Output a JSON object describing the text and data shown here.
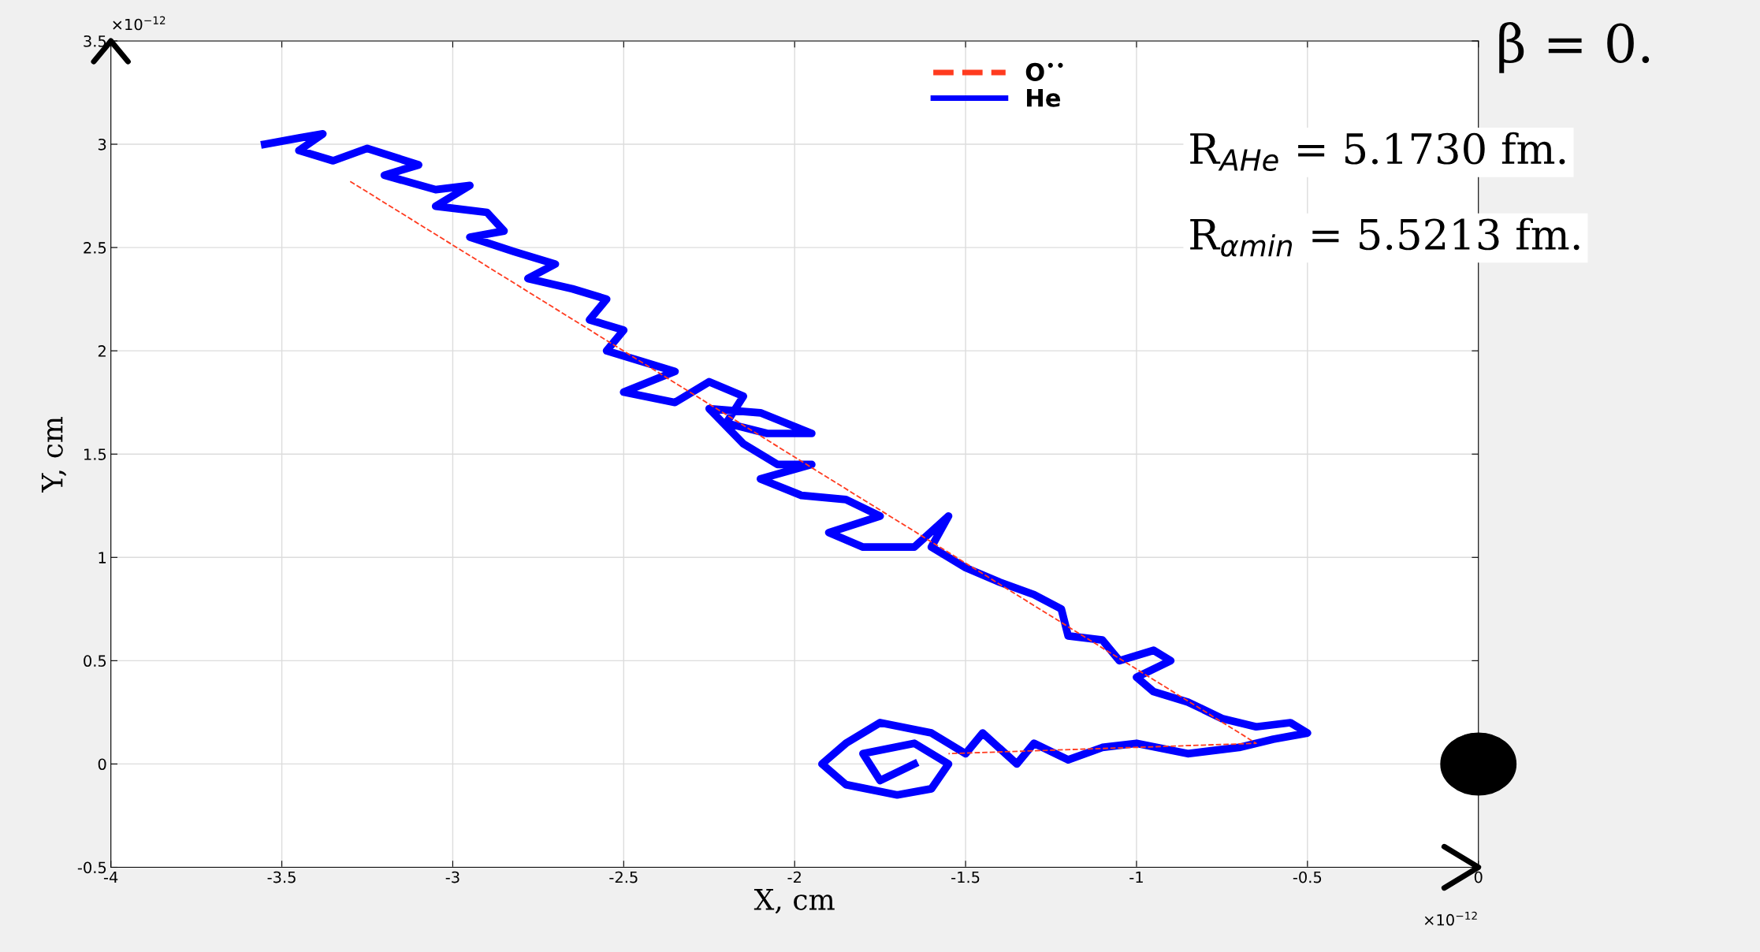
{
  "chart_data": {
    "type": "line",
    "xlabel": "X, cm",
    "ylabel": "Y, cm",
    "xlim": [
      -4,
      0
    ],
    "ylim": [
      -0.5,
      3.5
    ],
    "xticks": [
      -4,
      -3.5,
      -3,
      -2.5,
      -2,
      -1.5,
      -1,
      -0.5,
      0
    ],
    "yticks": [
      -0.5,
      0,
      0.5,
      1,
      1.5,
      2,
      2.5,
      3,
      3.5
    ],
    "grid": true,
    "legend": "top",
    "marker": "none",
    "series": [
      {
        "name": "O$^{••}$",
        "color": "#ff3b1f",
        "line_style": "dashed",
        "x": [
          -3.3,
          -0.65,
          -1.55
        ],
        "values": [
          2.82,
          0.1,
          0.05
        ]
      },
      {
        "name": "He",
        "color": "#0000ff",
        "line_style": "solid",
        "x": [
          -3.55,
          -3.45,
          -3.38,
          -3.45,
          -3.35,
          -3.25,
          -3.1,
          -3.2,
          -3.05,
          -2.95,
          -3.05,
          -2.9,
          -2.85,
          -2.95,
          -2.82,
          -2.7,
          -2.78,
          -2.65,
          -2.55,
          -2.6,
          -2.5,
          -2.55,
          -2.45,
          -2.35,
          -2.5,
          -2.35,
          -2.25,
          -2.15,
          -2.2,
          -2.08,
          -1.95,
          -2.1,
          -2.25,
          -2.15,
          -2.05,
          -1.95,
          -2.1,
          -1.98,
          -1.85,
          -1.75,
          -1.9,
          -1.8,
          -1.65,
          -1.55,
          -1.6,
          -1.5,
          -1.4,
          -1.3,
          -1.22,
          -1.2,
          -1.1,
          -1.05,
          -0.95,
          -0.9,
          -1.0,
          -0.95,
          -0.85,
          -0.75,
          -0.65,
          -0.55,
          -0.5,
          -0.6,
          -0.7,
          -0.85,
          -1.0,
          -1.1,
          -1.2,
          -1.3,
          -1.35,
          -1.45,
          -1.5,
          -1.6,
          -1.75,
          -1.85,
          -1.92,
          -1.85,
          -1.7,
          -1.6,
          -1.55,
          -1.65,
          -1.8,
          -1.75,
          -1.65
        ],
        "values": [
          3.0,
          3.03,
          3.05,
          2.97,
          2.92,
          2.98,
          2.9,
          2.85,
          2.78,
          2.8,
          2.7,
          2.67,
          2.58,
          2.55,
          2.48,
          2.42,
          2.35,
          2.3,
          2.25,
          2.15,
          2.1,
          2.0,
          1.95,
          1.9,
          1.8,
          1.75,
          1.85,
          1.78,
          1.65,
          1.6,
          1.6,
          1.7,
          1.72,
          1.55,
          1.45,
          1.45,
          1.38,
          1.3,
          1.28,
          1.2,
          1.12,
          1.05,
          1.05,
          1.2,
          1.05,
          0.95,
          0.88,
          0.82,
          0.75,
          0.62,
          0.6,
          0.5,
          0.55,
          0.5,
          0.42,
          0.35,
          0.3,
          0.22,
          0.18,
          0.2,
          0.15,
          0.12,
          0.08,
          0.05,
          0.1,
          0.08,
          0.02,
          0.1,
          0.0,
          0.15,
          0.05,
          0.15,
          0.2,
          0.1,
          0.0,
          -0.1,
          -0.15,
          -0.12,
          0.0,
          0.1,
          0.05,
          -0.08,
          0.0
        ]
      }
    ],
    "annotations": [
      "×10$^{−12}$",
      "×10$^{−12}$",
      "β = 0.",
      "R$_{AHe}$ = 5.1730 fm.",
      "R$_{αmin}$ = 5.5213 fm."
    ]
  }
}
